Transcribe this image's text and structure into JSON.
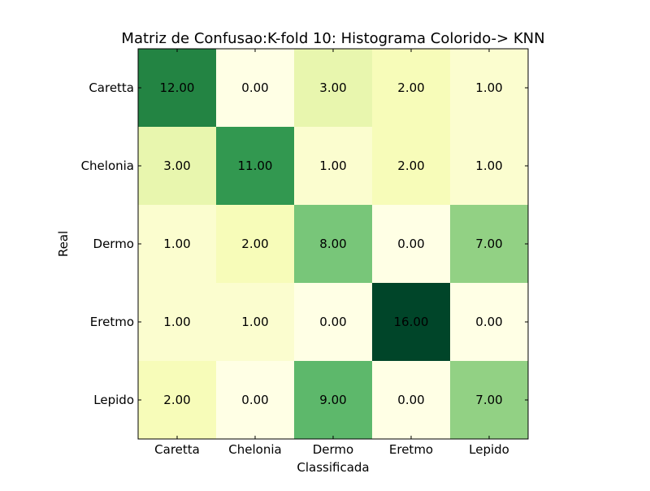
{
  "chart_data": {
    "type": "heatmap",
    "title": "Matriz de Confusao:K-fold 10: Histograma Colorido-> KNN",
    "xlabel": "Classificada",
    "ylabel": "Real",
    "x_categories": [
      "Caretta",
      "Chelonia",
      "Dermo",
      "Eretmo",
      "Lepido"
    ],
    "y_categories": [
      "Caretta",
      "Chelonia",
      "Dermo",
      "Eretmo",
      "Lepido"
    ],
    "values": [
      [
        12,
        0,
        3,
        2,
        1
      ],
      [
        3,
        11,
        1,
        2,
        1
      ],
      [
        1,
        2,
        8,
        0,
        7
      ],
      [
        1,
        1,
        0,
        16,
        0
      ],
      [
        2,
        0,
        9,
        0,
        7
      ]
    ],
    "cell_labels": [
      [
        "12.00",
        "0.00",
        "3.00",
        "2.00",
        "1.00"
      ],
      [
        "3.00",
        "11.00",
        "1.00",
        "2.00",
        "1.00"
      ],
      [
        "1.00",
        "2.00",
        "8.00",
        "0.00",
        "7.00"
      ],
      [
        "1.00",
        "1.00",
        "0.00",
        "16.00",
        "0.00"
      ],
      [
        "2.00",
        "0.00",
        "9.00",
        "0.00",
        "7.00"
      ]
    ],
    "colormap": "YlGn",
    "value_range": [
      0,
      16
    ]
  }
}
